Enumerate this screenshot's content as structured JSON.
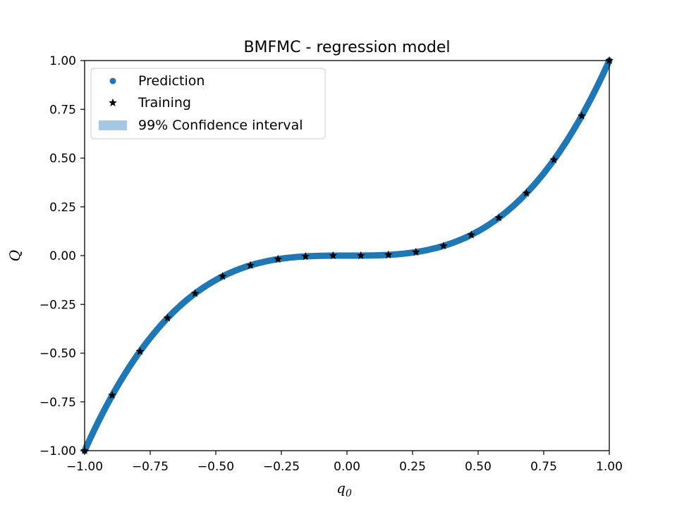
{
  "chart_data": {
    "type": "line",
    "title": "BMFMC - regression model",
    "xlabel": "q",
    "xlabel_subscript": "0",
    "ylabel": "Q",
    "xlim": [
      -1.0,
      1.0
    ],
    "ylim": [
      -1.0,
      1.0
    ],
    "xticks": [
      -1.0,
      -0.75,
      -0.5,
      -0.25,
      0.0,
      0.25,
      0.5,
      0.75,
      1.0
    ],
    "xtick_labels": [
      "−1.00",
      "−0.75",
      "−0.50",
      "−0.25",
      "0.00",
      "0.25",
      "0.50",
      "0.75",
      "1.00"
    ],
    "yticks": [
      -1.0,
      -0.75,
      -0.5,
      -0.25,
      0.0,
      0.25,
      0.5,
      0.75,
      1.0
    ],
    "ytick_labels": [
      "−1.00",
      "−0.75",
      "−0.50",
      "−0.25",
      "0.00",
      "0.25",
      "0.50",
      "0.75",
      "1.00"
    ],
    "grid": false,
    "legend_position": "top-left",
    "colors": {
      "prediction": "#1f77b4",
      "confidence": "#a6c8e4",
      "training": "#000000"
    },
    "series": [
      {
        "name": "Prediction",
        "kind": "line",
        "function": "x^3",
        "x_range": [
          -1.0,
          1.0
        ]
      },
      {
        "name": "Training",
        "kind": "scatter",
        "marker": "star",
        "x": [
          -1.0,
          -0.895,
          -0.789,
          -0.684,
          -0.579,
          -0.474,
          -0.368,
          -0.263,
          -0.158,
          -0.053,
          0.053,
          0.158,
          0.263,
          0.368,
          0.474,
          0.579,
          0.684,
          0.789,
          0.895,
          1.0
        ],
        "y": [
          -1.0,
          -0.716,
          -0.491,
          -0.32,
          -0.194,
          -0.106,
          -0.05,
          -0.018,
          -0.004,
          0.0,
          0.0,
          0.004,
          0.018,
          0.05,
          0.106,
          0.194,
          0.32,
          0.491,
          0.716,
          1.0
        ]
      },
      {
        "name": "99% Confidence interval",
        "kind": "band",
        "half_width": 0.012
      }
    ]
  }
}
